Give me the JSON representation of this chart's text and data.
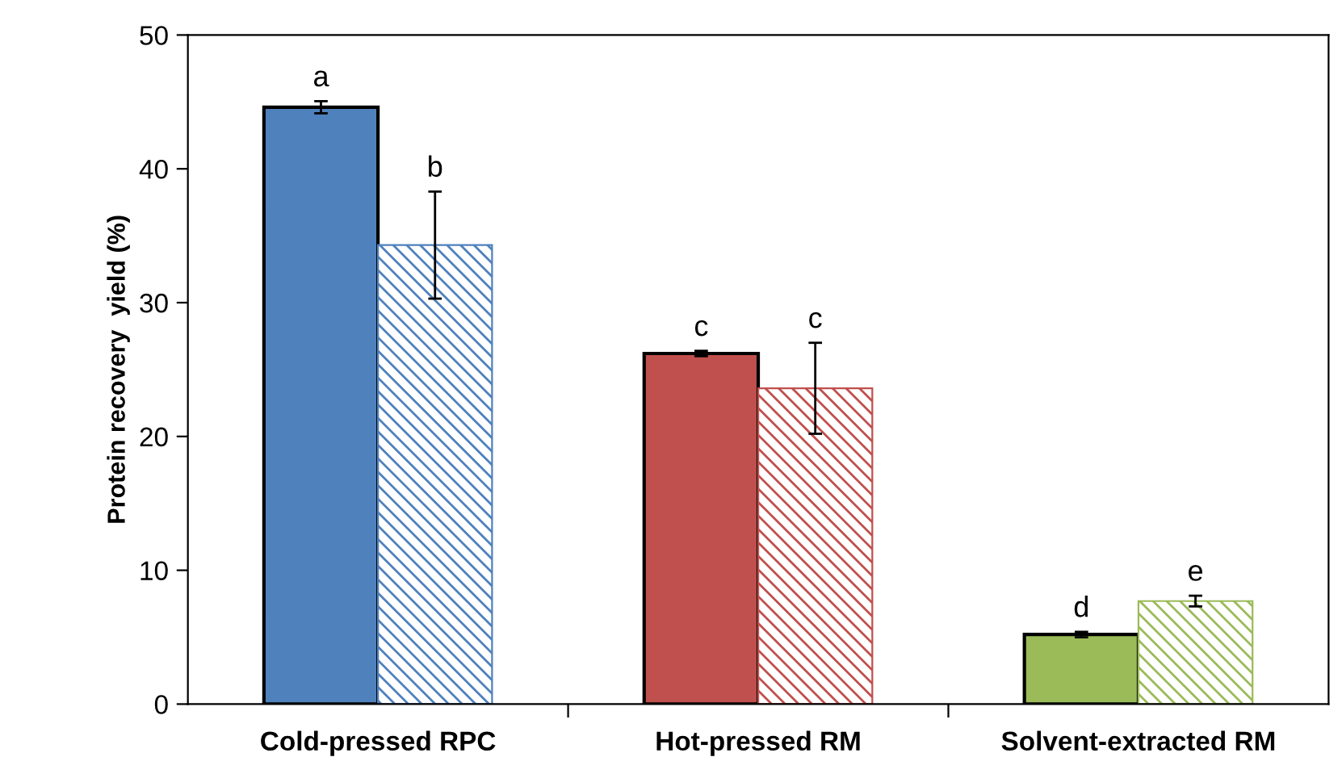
{
  "chart_data": {
    "type": "bar",
    "ylabel": "Protein recovery  yield (%)",
    "categories": [
      "Cold-pressed RPC",
      "Hot-pressed RM",
      "Solvent-extracted RM"
    ],
    "series": [
      {
        "colors": [
          "#4f81bd",
          "#c0504d",
          "#9bbb59"
        ],
        "values": [
          44.6,
          26.2,
          5.2
        ],
        "errors": [
          0.45,
          0.2,
          0.2
        ]
      },
      {
        "colors": [
          "#4f81bd",
          "#c0504d",
          "#9bbb59"
        ],
        "values": [
          34.3,
          23.6,
          7.7
        ],
        "errors": [
          4.0,
          3.4,
          0.4
        ]
      }
    ],
    "annotations": [
      "a",
      "b",
      "c",
      "c",
      "d",
      "e"
    ],
    "ylim": [
      0,
      50
    ],
    "yticks": [
      0,
      10,
      20,
      30,
      40,
      50
    ],
    "grid": false,
    "legend": false
  }
}
